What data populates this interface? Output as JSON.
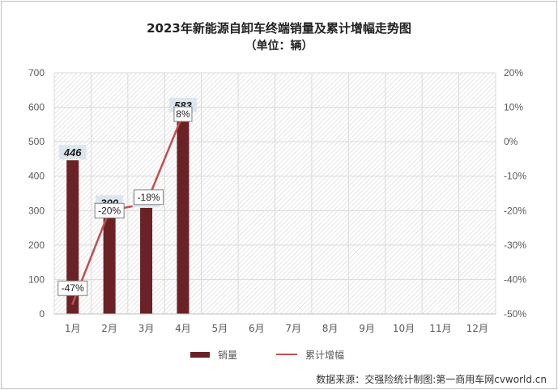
{
  "title": "2023年新能源自卸车终端销量及累计增幅走势图",
  "subtitle": "（单位：辆）",
  "source": "数据来源：交强险统计制图:第一商用车网cvworld.cn",
  "legend": {
    "bar": "销量",
    "line": "累计增幅"
  },
  "colors": {
    "bar": "#6b2226",
    "line": "#c0504d",
    "label_bg": "#dce6f1"
  },
  "chart_data": {
    "type": "bar",
    "categories": [
      "1月",
      "2月",
      "3月",
      "4月",
      "5月",
      "6月",
      "7月",
      "8月",
      "9月",
      "10月",
      "11月",
      "12月"
    ],
    "series": [
      {
        "name": "销量",
        "type": "bar",
        "axis": "left",
        "values": [
          446,
          300,
          308,
          583,
          null,
          null,
          null,
          null,
          null,
          null,
          null,
          null
        ]
      },
      {
        "name": "累计增幅",
        "type": "line",
        "axis": "right",
        "values": [
          -47,
          -20,
          -18,
          8,
          null,
          null,
          null,
          null,
          null,
          null,
          null,
          null
        ]
      }
    ],
    "bar_labels": [
      "446",
      "300",
      "308",
      "583"
    ],
    "line_labels": [
      "-47%",
      "-20%",
      "-18%",
      "8%"
    ],
    "y_left": {
      "min": 0,
      "max": 700,
      "ticks": [
        "0",
        "100",
        "200",
        "300",
        "400",
        "500",
        "600",
        "700"
      ]
    },
    "y_right": {
      "min": -50,
      "max": 20,
      "ticks": [
        "-50%",
        "-40%",
        "-30%",
        "-20%",
        "-10%",
        "0%",
        "10%",
        "20%"
      ]
    },
    "grid": true,
    "legend_position": "bottom"
  }
}
